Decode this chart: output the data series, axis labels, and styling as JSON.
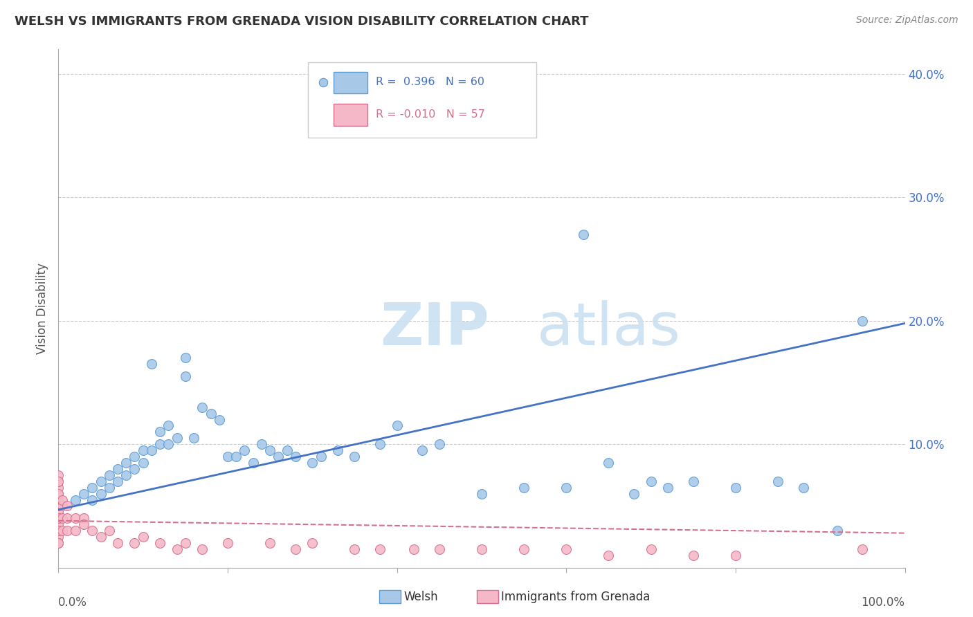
{
  "title": "WELSH VS IMMIGRANTS FROM GRENADA VISION DISABILITY CORRELATION CHART",
  "source": "Source: ZipAtlas.com",
  "ylabel": "Vision Disability",
  "xlim": [
    0,
    1.0
  ],
  "ylim": [
    0,
    0.42
  ],
  "yticks": [
    0.0,
    0.1,
    0.2,
    0.3,
    0.4
  ],
  "xticks": [
    0.0,
    0.2,
    0.4,
    0.6,
    0.8,
    1.0
  ],
  "welsh_color": "#a8c8e8",
  "welsh_edge_color": "#5b9bd5",
  "grenada_color": "#f4b8c8",
  "grenada_edge_color": "#d4708a",
  "trendline_welsh_color": "#4472c4",
  "trendline_grenada_color": "#d4708a",
  "watermark_text": "ZIPatlas",
  "background_color": "#ffffff",
  "grid_color": "#cccccc",
  "welsh_x": [
    0.02,
    0.03,
    0.04,
    0.04,
    0.05,
    0.05,
    0.06,
    0.06,
    0.07,
    0.07,
    0.08,
    0.08,
    0.09,
    0.09,
    0.1,
    0.1,
    0.11,
    0.11,
    0.12,
    0.12,
    0.13,
    0.13,
    0.14,
    0.15,
    0.15,
    0.16,
    0.17,
    0.18,
    0.19,
    0.2,
    0.21,
    0.22,
    0.23,
    0.24,
    0.25,
    0.26,
    0.27,
    0.28,
    0.3,
    0.31,
    0.33,
    0.35,
    0.38,
    0.4,
    0.43,
    0.45,
    0.5,
    0.55,
    0.6,
    0.62,
    0.65,
    0.68,
    0.7,
    0.72,
    0.75,
    0.8,
    0.85,
    0.88,
    0.92,
    0.95
  ],
  "welsh_y": [
    0.055,
    0.06,
    0.055,
    0.065,
    0.06,
    0.07,
    0.065,
    0.075,
    0.07,
    0.08,
    0.075,
    0.085,
    0.08,
    0.09,
    0.085,
    0.095,
    0.095,
    0.165,
    0.1,
    0.11,
    0.1,
    0.115,
    0.105,
    0.155,
    0.17,
    0.105,
    0.13,
    0.125,
    0.12,
    0.09,
    0.09,
    0.095,
    0.085,
    0.1,
    0.095,
    0.09,
    0.095,
    0.09,
    0.085,
    0.09,
    0.095,
    0.09,
    0.1,
    0.115,
    0.095,
    0.1,
    0.06,
    0.065,
    0.065,
    0.27,
    0.085,
    0.06,
    0.07,
    0.065,
    0.07,
    0.065,
    0.07,
    0.065,
    0.03,
    0.2
  ],
  "grenada_x": [
    0.0,
    0.0,
    0.0,
    0.0,
    0.0,
    0.0,
    0.0,
    0.0,
    0.0,
    0.0,
    0.0,
    0.0,
    0.0,
    0.0,
    0.0,
    0.0,
    0.0,
    0.0,
    0.0,
    0.0,
    0.005,
    0.005,
    0.005,
    0.005,
    0.01,
    0.01,
    0.01,
    0.02,
    0.02,
    0.03,
    0.03,
    0.04,
    0.05,
    0.06,
    0.07,
    0.09,
    0.1,
    0.12,
    0.14,
    0.15,
    0.17,
    0.2,
    0.25,
    0.28,
    0.3,
    0.35,
    0.38,
    0.42,
    0.45,
    0.5,
    0.55,
    0.6,
    0.65,
    0.7,
    0.75,
    0.8,
    0.95
  ],
  "grenada_y": [
    0.03,
    0.035,
    0.04,
    0.045,
    0.05,
    0.055,
    0.06,
    0.065,
    0.07,
    0.075,
    0.025,
    0.02,
    0.03,
    0.04,
    0.05,
    0.06,
    0.07,
    0.04,
    0.03,
    0.02,
    0.04,
    0.05,
    0.03,
    0.055,
    0.04,
    0.05,
    0.03,
    0.04,
    0.03,
    0.04,
    0.035,
    0.03,
    0.025,
    0.03,
    0.02,
    0.02,
    0.025,
    0.02,
    0.015,
    0.02,
    0.015,
    0.02,
    0.02,
    0.015,
    0.02,
    0.015,
    0.015,
    0.015,
    0.015,
    0.015,
    0.015,
    0.015,
    0.01,
    0.015,
    0.01,
    0.01,
    0.015
  ],
  "welsh_trend_x": [
    0.0,
    1.0
  ],
  "welsh_trend_y": [
    0.047,
    0.198
  ],
  "grenada_trend_x": [
    0.0,
    1.0
  ],
  "grenada_trend_y": [
    0.038,
    0.028
  ]
}
